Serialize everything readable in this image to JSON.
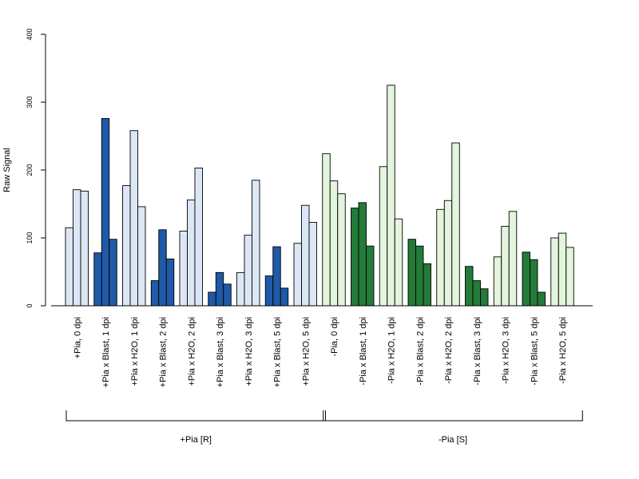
{
  "chart_data": {
    "type": "bar",
    "ylabel": "Raw Signal",
    "ylim": [
      0,
      400
    ],
    "yticks": [
      0,
      100,
      200,
      300,
      400
    ],
    "grid": false,
    "legend": "none",
    "bars_per_category": 3,
    "categories": [
      {
        "label": "+Pia, 0 dpi",
        "values": [
          115,
          171,
          169
        ],
        "color": "#dce7f6"
      },
      {
        "label": "+Pia x Blast, 1 dpi",
        "values": [
          78,
          276,
          98
        ],
        "color": "#1f5aa8"
      },
      {
        "label": "+Pia x H2O, 1 dpi",
        "values": [
          177,
          258,
          146
        ],
        "color": "#dce7f6"
      },
      {
        "label": "+Pia x Blast, 2 dpi",
        "values": [
          37,
          112,
          69
        ],
        "color": "#1f5aa8"
      },
      {
        "label": "+Pia x H2O, 2 dpi",
        "values": [
          110,
          156,
          203
        ],
        "color": "#dce7f6"
      },
      {
        "label": "+Pia x Blast, 3 dpi",
        "values": [
          20,
          49,
          32
        ],
        "color": "#1f5aa8"
      },
      {
        "label": "+Pia x H2O, 3 dpi",
        "values": [
          49,
          104,
          185
        ],
        "color": "#dce7f6"
      },
      {
        "label": "+Pia x Blast, 5 dpi",
        "values": [
          44,
          87,
          26
        ],
        "color": "#1f5aa8"
      },
      {
        "label": "+Pia x H2O, 5 dpi",
        "values": [
          92,
          148,
          123
        ],
        "color": "#dce7f6"
      },
      {
        "label": "-Pia, 0 dpi",
        "values": [
          224,
          184,
          165
        ],
        "color": "#e3f5dc"
      },
      {
        "label": "-Pia x Blast, 1 dpi",
        "values": [
          144,
          152,
          88
        ],
        "color": "#247a39"
      },
      {
        "label": "-Pia x H2O, 1 dpi",
        "values": [
          205,
          325,
          128
        ],
        "color": "#e3f5dc"
      },
      {
        "label": "-Pia x Blast, 2 dpi",
        "values": [
          98,
          88,
          62
        ],
        "color": "#247a39"
      },
      {
        "label": "-Pia x H2O, 2 dpi",
        "values": [
          142,
          155,
          240
        ],
        "color": "#e3f5dc"
      },
      {
        "label": "-Pia x Blast, 3 dpi",
        "values": [
          58,
          37,
          25
        ],
        "color": "#247a39"
      },
      {
        "label": "-Pia x H2O, 3 dpi",
        "values": [
          72,
          117,
          139
        ],
        "color": "#e3f5dc"
      },
      {
        "label": "-Pia x Blast, 5 dpi",
        "values": [
          79,
          68,
          20
        ],
        "color": "#247a39"
      },
      {
        "label": "-Pia x H2O, 5 dpi",
        "values": [
          100,
          107,
          86
        ],
        "color": "#e3f5dc"
      }
    ],
    "groups": [
      {
        "label": "+Pia [R]",
        "first_category": 0,
        "last_category": 8
      },
      {
        "label": "-Pia [S]",
        "first_category": 9,
        "last_category": 17
      }
    ]
  }
}
